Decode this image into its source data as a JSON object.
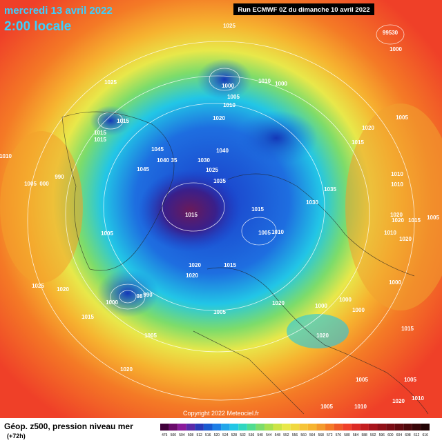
{
  "header": {
    "date": "mercredi 13 avril 2022",
    "time": "2:00 locale",
    "run": "Run ECMWF 0Z du dimanche 10 avril 2022"
  },
  "map": {
    "isobar_labels": [
      "1025",
      "99530",
      "1000",
      "1025",
      "1000",
      "1010",
      "1000",
      "1005",
      "1010",
      "1015",
      "1020",
      "1005",
      "1020",
      "1015",
      "1015",
      "1015",
      "1045",
      "1040",
      "1045",
      "1040",
      "35",
      "1030",
      "1025",
      "1010",
      "990",
      "1005",
      "000",
      "1035",
      "1035",
      "1010",
      "1010",
      "1030",
      "1015",
      "1015",
      "1005",
      "1010",
      "1020",
      "1020",
      "1015",
      "1005",
      "1010",
      "1020",
      "1005",
      "1020",
      "1015",
      "1020",
      "1025",
      "1020",
      "1000",
      "1000",
      "98",
      "990",
      "1020",
      "1000",
      "1000",
      "1000",
      "1015",
      "1005",
      "1015",
      "1005",
      "1020",
      "1020",
      "1005",
      "1005",
      "1010",
      "1020",
      "1005",
      "1010"
    ],
    "copyright": "Copyright 2022 Meteociel.fr"
  },
  "footer": {
    "title": "Géop. z500, pression niveau mer",
    "step": "(+72h)",
    "legend_scale": [
      "476",
      "500",
      "504",
      "508",
      "512",
      "516",
      "520",
      "524",
      "528",
      "532",
      "536",
      "540",
      "544",
      "548",
      "552",
      "556",
      "560",
      "564",
      "568",
      "572",
      "576",
      "580",
      "584",
      "588",
      "592",
      "596",
      "600",
      "604",
      "608",
      "612",
      "616"
    ]
  }
}
